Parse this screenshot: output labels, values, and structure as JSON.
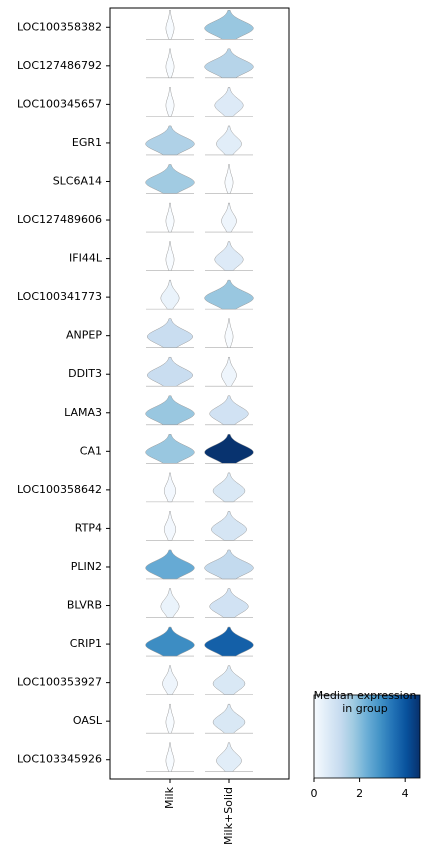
{
  "chart_data": {
    "type": "violin",
    "categories": [
      "LOC100358382",
      "LOC127486792",
      "LOC100345657",
      "EGR1",
      "SLC6A14",
      "LOC127489606",
      "IFI44L",
      "LOC100341773",
      "ANPEP",
      "DDIT3",
      "LAMA3",
      "CA1",
      "LOC100358642",
      "RTP4",
      "PLIN2",
      "BLVRB",
      "CRIP1",
      "LOC100353927",
      "OASL",
      "LOC103345926"
    ],
    "series": [
      {
        "name": "Milk",
        "values": [
          0,
          0,
          0,
          1.5,
          1.7,
          0,
          0,
          0.3,
          1.1,
          1.1,
          1.8,
          1.8,
          0.1,
          0.1,
          2.4,
          0.3,
          3.0,
          0.2,
          0,
          0
        ]
      },
      {
        "name": "Milk+Solid",
        "values": [
          1.8,
          1.4,
          0.6,
          0.5,
          0,
          0.2,
          0.6,
          1.8,
          0,
          0.2,
          0.9,
          4.6,
          0.7,
          0.8,
          1.2,
          0.9,
          3.8,
          0.7,
          0.7,
          0.5
        ]
      }
    ],
    "colorbar_title": "Median expression\nin group",
    "clim": [
      0,
      4.65
    ],
    "cticks": [
      0,
      2,
      4
    ],
    "colormap": "Blues"
  }
}
